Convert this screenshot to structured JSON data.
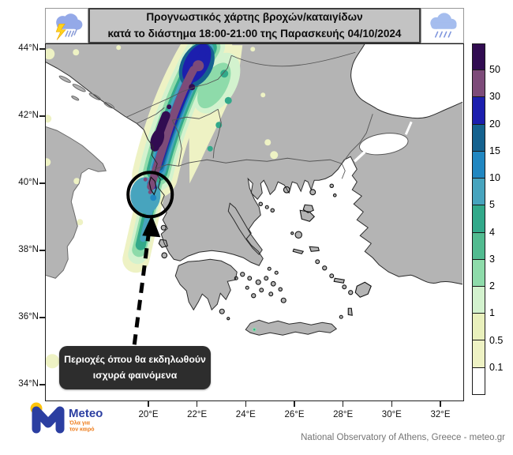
{
  "banner": {
    "title_line1": "Προγνωστικός χάρτης βροχών/καταιγίδων",
    "title_line2": "κατά το διάστημα 18:00-21:00 της Παρασκευής 04/10/2024",
    "left_icon": "storm-cloud-lightning-icon",
    "right_icon": "rain-cloud-icon"
  },
  "axes": {
    "lat_ticks": [
      {
        "label": "44°N",
        "deg": 44
      },
      {
        "label": "42°N",
        "deg": 42
      },
      {
        "label": "40°N",
        "deg": 40
      },
      {
        "label": "38°N",
        "deg": 38
      },
      {
        "label": "36°N",
        "deg": 36
      },
      {
        "label": "34°N",
        "deg": 34
      }
    ],
    "lon_ticks": [
      {
        "label": "20°E",
        "deg": 20
      },
      {
        "label": "22°E",
        "deg": 22
      },
      {
        "label": "24°E",
        "deg": 24
      },
      {
        "label": "26°E",
        "deg": 26
      },
      {
        "label": "28°E",
        "deg": 28
      },
      {
        "label": "30°E",
        "deg": 30
      },
      {
        "label": "32°E",
        "deg": 32
      }
    ]
  },
  "colorbar": {
    "boundary_labels": [
      "50",
      "30",
      "20",
      "15",
      "10",
      "5",
      "4",
      "3",
      "2",
      "1",
      "0.5",
      "0.1"
    ],
    "segment_colors": [
      "#310c51",
      "#7d4b79",
      "#1c1fae",
      "#15628f",
      "#2187c1",
      "#47a4be",
      "#32a98a",
      "#52bb90",
      "#8edbaa",
      "#d3f2ce",
      "#e9f0bc",
      "#eef2c4",
      "#ffffff"
    ]
  },
  "annotation": {
    "label_line1": "Περιοχές όπου θα εκδηλωθούν",
    "label_line2": "ισχυρά φαινόμενα"
  },
  "map_colors": {
    "sea": "#ffffff",
    "land": "#b4b4b4",
    "coastline": "#2b2b2b",
    "country_border": "#555555"
  },
  "logo": {
    "brand": "Meteo",
    "tagline_line1": "Όλα για",
    "tagline_line2": "τον καιρό"
  },
  "footer": {
    "attribution": "National Observatory of Athens, Greece - meteo.gr"
  }
}
